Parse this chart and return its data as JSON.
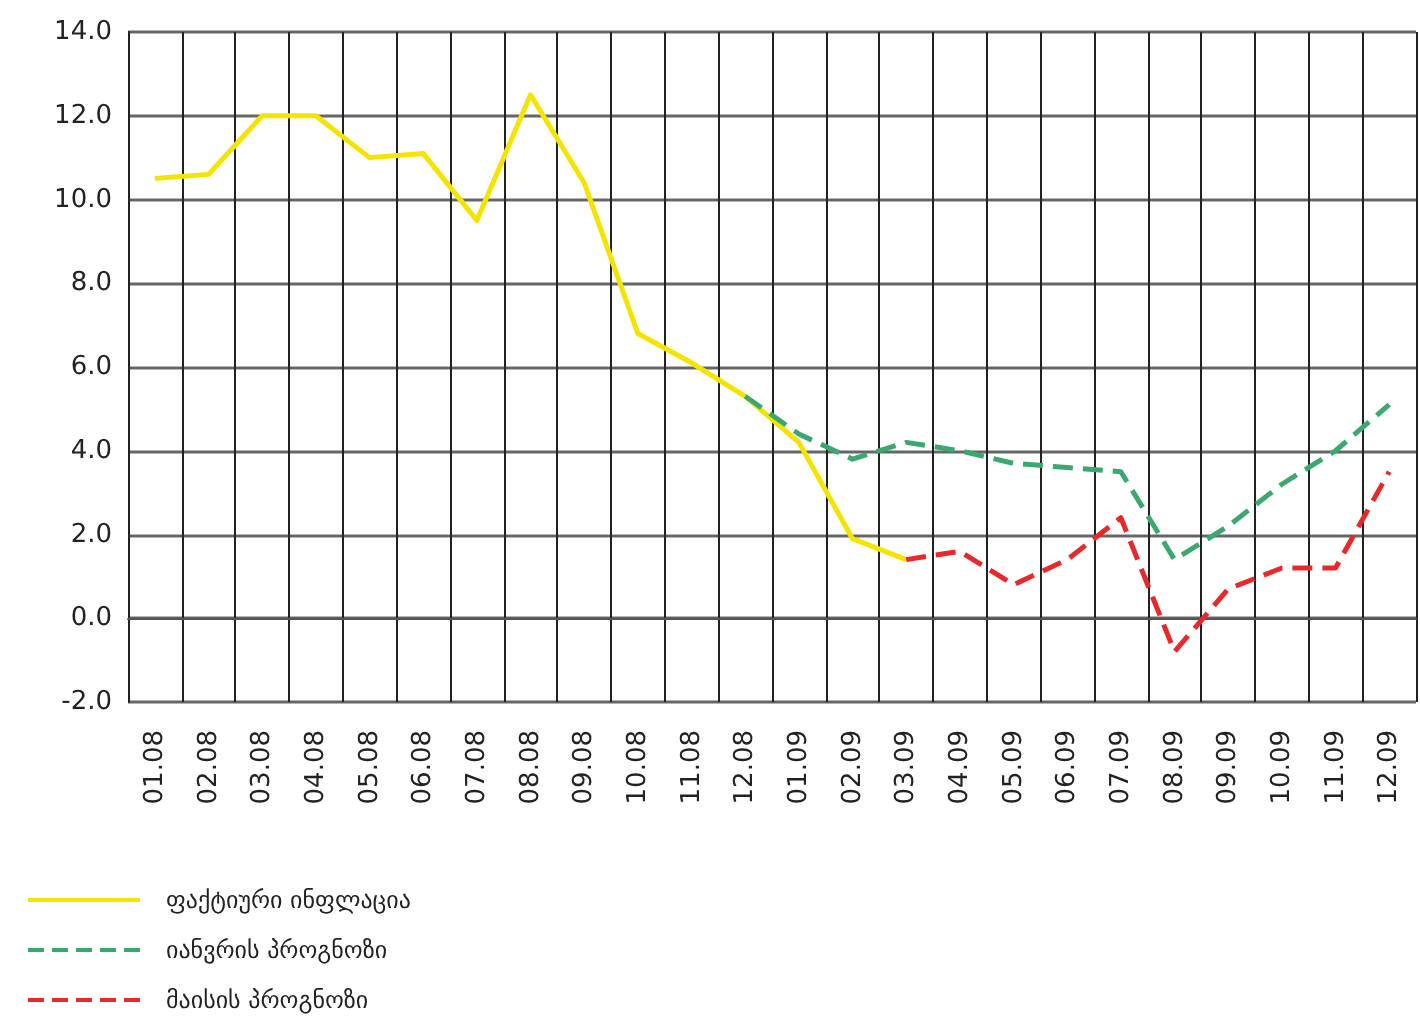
{
  "chart_data": {
    "type": "line",
    "categories": [
      "01.08",
      "02.08",
      "03.08",
      "04.08",
      "05.08",
      "06.08",
      "07.08",
      "08.08",
      "09.08",
      "10.08",
      "11.08",
      "12.08",
      "01.09",
      "02.09",
      "03.09",
      "04.09",
      "05.09",
      "06.09",
      "07.09",
      "08.09",
      "09.09",
      "10.09",
      "11.09",
      "12.09"
    ],
    "series": [
      {
        "name": "ფაქტიური ინფლაცია",
        "color": "#f5e400",
        "line_style": "solid",
        "values": [
          10.5,
          10.6,
          12.0,
          12.0,
          11.0,
          11.1,
          9.5,
          12.5,
          10.4,
          6.8,
          6.1,
          5.3,
          4.2,
          1.9,
          1.4,
          null,
          null,
          null,
          null,
          null,
          null,
          null,
          null,
          null
        ]
      },
      {
        "name": "იანვრის პროგნოზი",
        "color": "#3aa86f",
        "line_style": "dashed",
        "values": [
          null,
          null,
          null,
          null,
          null,
          null,
          null,
          null,
          null,
          null,
          null,
          5.3,
          4.4,
          3.8,
          4.2,
          4.0,
          3.7,
          3.6,
          3.5,
          1.4,
          2.2,
          3.2,
          4.0,
          5.1
        ]
      },
      {
        "name": "მაისის პროგნოზი",
        "color": "#e8282a",
        "line_style": "dashed",
        "values": [
          null,
          null,
          null,
          null,
          null,
          null,
          null,
          null,
          null,
          null,
          null,
          null,
          null,
          null,
          1.4,
          1.6,
          0.8,
          1.4,
          2.4,
          -0.8,
          0.7,
          1.2,
          1.2,
          3.5
        ]
      }
    ],
    "ylim": [
      -2,
      14
    ],
    "yticks": [
      {
        "value": -2,
        "label": "-2.0"
      },
      {
        "value": 0,
        "label": "0.0"
      },
      {
        "value": 2,
        "label": "2.0"
      },
      {
        "value": 4,
        "label": "4.0"
      },
      {
        "value": 6,
        "label": "6.0"
      },
      {
        "value": 8,
        "label": "8.0"
      },
      {
        "value": 10,
        "label": "10.0"
      },
      {
        "value": 12,
        "label": "12.0"
      },
      {
        "value": 14,
        "label": "14.0"
      }
    ],
    "grid": true,
    "legend": "bottom left",
    "marker": "none"
  }
}
